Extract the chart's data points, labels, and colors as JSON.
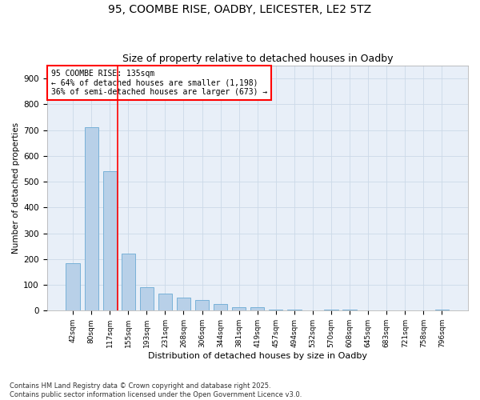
{
  "title1": "95, COOMBE RISE, OADBY, LEICESTER, LE2 5TZ",
  "title2": "Size of property relative to detached houses in Oadby",
  "xlabel": "Distribution of detached houses by size in Oadby",
  "ylabel": "Number of detached properties",
  "categories": [
    "42sqm",
    "80sqm",
    "117sqm",
    "155sqm",
    "193sqm",
    "231sqm",
    "268sqm",
    "306sqm",
    "344sqm",
    "381sqm",
    "419sqm",
    "457sqm",
    "494sqm",
    "532sqm",
    "570sqm",
    "608sqm",
    "645sqm",
    "683sqm",
    "721sqm",
    "758sqm",
    "796sqm"
  ],
  "values": [
    185,
    710,
    540,
    220,
    90,
    65,
    50,
    40,
    25,
    15,
    15,
    5,
    5,
    0,
    5,
    5,
    0,
    0,
    0,
    0,
    5
  ],
  "bar_color": "#b8d0e8",
  "bar_edge_color": "#6aaad4",
  "vline_x": 2.42,
  "vline_color": "red",
  "annotation_text": "95 COOMBE RISE: 135sqm\n← 64% of detached houses are smaller (1,198)\n36% of semi-detached houses are larger (673) →",
  "annotation_box_color": "white",
  "annotation_box_edge": "red",
  "footnote1": "Contains HM Land Registry data © Crown copyright and database right 2025.",
  "footnote2": "Contains public sector information licensed under the Open Government Licence v3.0.",
  "ylim": [
    0,
    950
  ],
  "yticks": [
    0,
    100,
    200,
    300,
    400,
    500,
    600,
    700,
    800,
    900
  ],
  "grid_color": "#ccd9e8",
  "bg_color": "#e8eff8",
  "title1_fontsize": 10,
  "title2_fontsize": 9,
  "bar_width": 0.75
}
